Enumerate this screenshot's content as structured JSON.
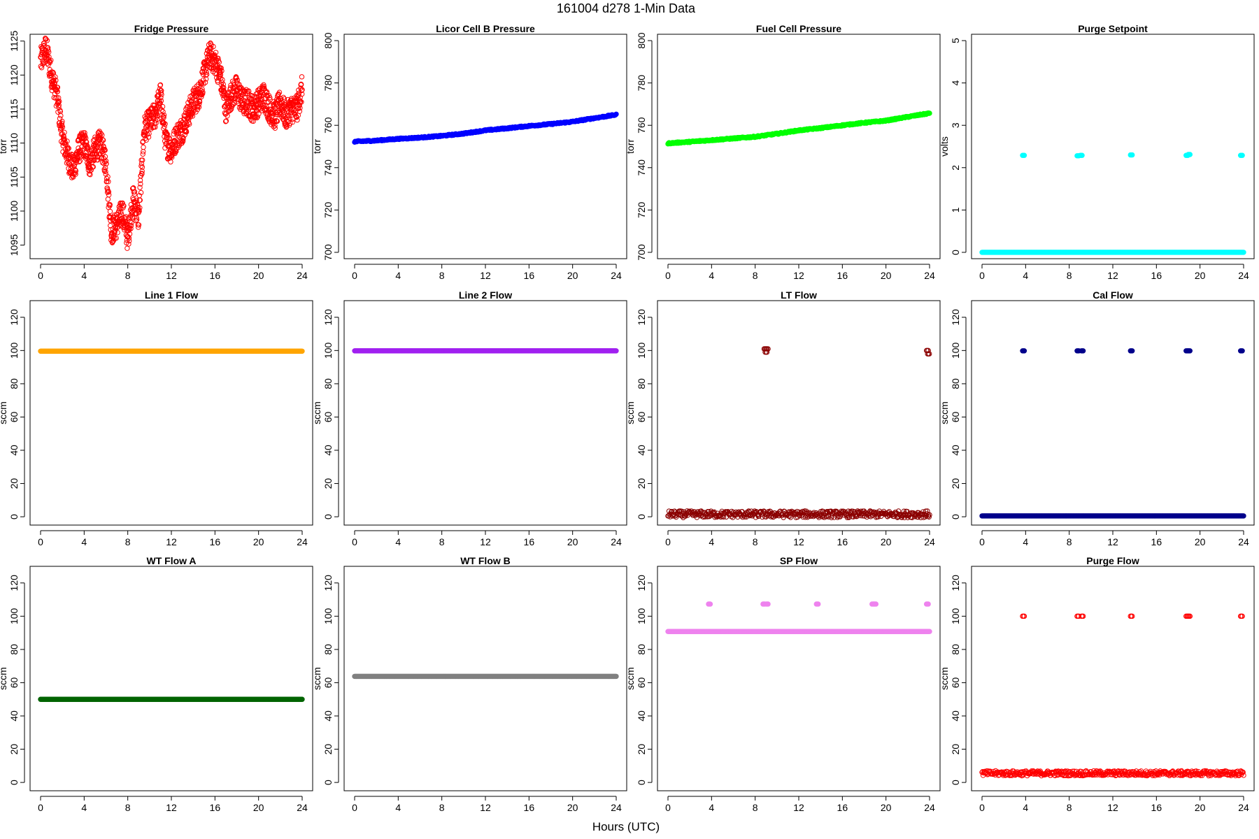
{
  "figure": {
    "title": "161004    d278    1-Min Data",
    "xlabel": "Hours (UTC)"
  },
  "chart_data": [
    {
      "type": "scatter",
      "title": "Fridge Pressure",
      "ylabel": "torr",
      "color": "#ff0000",
      "marker": "open-circle",
      "xlim": [
        0,
        24
      ],
      "xticks": [
        0,
        4,
        8,
        12,
        16,
        20,
        24
      ],
      "ylim": [
        1093,
        1126
      ],
      "yticks": [
        1095,
        1100,
        1105,
        1110,
        1115,
        1120,
        1125
      ],
      "x": [
        0,
        0.5,
        1,
        1.5,
        2,
        2.5,
        3,
        3.5,
        4,
        4.5,
        5,
        5.5,
        6,
        6.5,
        7,
        7.5,
        8,
        8.5,
        9,
        9.5,
        10,
        10.5,
        11,
        11.5,
        12,
        12.5,
        13,
        13.5,
        14,
        14.5,
        15,
        15.5,
        16,
        16.5,
        17,
        17.5,
        18,
        18.5,
        19,
        19.5,
        20,
        20.5,
        21,
        21.5,
        22,
        22.5,
        23,
        23.5,
        24
      ],
      "y": [
        1122,
        1124,
        1120,
        1117,
        1111,
        1108,
        1106,
        1109,
        1110,
        1107,
        1109,
        1110,
        1107,
        1097,
        1098,
        1100,
        1096,
        1102,
        1099,
        1112,
        1113,
        1114,
        1117,
        1110,
        1109,
        1111,
        1112,
        1114,
        1116,
        1117,
        1120,
        1123,
        1122,
        1120,
        1115,
        1117,
        1118,
        1116,
        1116,
        1115,
        1116,
        1117,
        1115,
        1114,
        1116,
        1114,
        1115,
        1115,
        1118
      ]
    },
    {
      "type": "scatter",
      "title": "Licor Cell B Pressure",
      "ylabel": "torr",
      "color": "#0000ff",
      "marker": "filled",
      "xlim": [
        0,
        24
      ],
      "xticks": [
        0,
        4,
        8,
        12,
        16,
        20,
        24
      ],
      "ylim": [
        697,
        803
      ],
      "yticks": [
        700,
        720,
        740,
        760,
        780,
        800
      ],
      "x": [
        0,
        2,
        4,
        6,
        8,
        10,
        12,
        14,
        16,
        18,
        20,
        22,
        24
      ],
      "y": [
        752.3,
        752.8,
        753.6,
        754.2,
        755.0,
        756.1,
        757.6,
        758.6,
        759.7,
        760.6,
        761.7,
        763.4,
        765.0
      ]
    },
    {
      "type": "scatter",
      "title": "Fuel Cell Pressure",
      "ylabel": "torr",
      "color": "#00ff00",
      "marker": "filled",
      "xlim": [
        0,
        24
      ],
      "xticks": [
        0,
        4,
        8,
        12,
        16,
        20,
        24
      ],
      "ylim": [
        697,
        803
      ],
      "yticks": [
        700,
        720,
        740,
        760,
        780,
        800
      ],
      "x": [
        0,
        2,
        4,
        6,
        8,
        10,
        12,
        14,
        16,
        18,
        20,
        22,
        24
      ],
      "y": [
        751.5,
        752.2,
        753.0,
        753.8,
        754.6,
        756.0,
        757.6,
        758.7,
        760.0,
        761.2,
        762.2,
        764.0,
        765.7
      ]
    },
    {
      "type": "scatter",
      "title": "Purge Setpoint",
      "ylabel": "volts",
      "color": "#00ffff",
      "marker": "filled",
      "xlim": [
        0,
        24
      ],
      "xticks": [
        0,
        4,
        8,
        12,
        16,
        20,
        24
      ],
      "ylim": [
        -0.15,
        5.15
      ],
      "yticks": [
        0,
        1,
        2,
        3,
        4,
        5
      ],
      "baseline": 0.0,
      "spikes": {
        "x": [
          3.8,
          8.8,
          9.1,
          13.7,
          18.8,
          19.0,
          23.8
        ],
        "y": [
          2.29,
          2.28,
          2.29,
          2.3,
          2.29,
          2.31,
          2.29
        ]
      }
    },
    {
      "type": "scatter",
      "title": "Line 1 Flow",
      "ylabel": "sccm",
      "color": "#ffa500",
      "marker": "filled",
      "xlim": [
        0,
        24
      ],
      "xticks": [
        0,
        4,
        8,
        12,
        16,
        20,
        24
      ],
      "ylim": [
        -5,
        130
      ],
      "yticks": [
        0,
        20,
        40,
        60,
        80,
        100,
        120
      ],
      "baseline": 99.6
    },
    {
      "type": "scatter",
      "title": "Line 2 Flow",
      "ylabel": "sccm",
      "color": "#a020f0",
      "marker": "filled",
      "xlim": [
        0,
        24
      ],
      "xticks": [
        0,
        4,
        8,
        12,
        16,
        20,
        24
      ],
      "ylim": [
        -5,
        130
      ],
      "yticks": [
        0,
        20,
        40,
        60,
        80,
        100,
        120
      ],
      "baseline": 99.8
    },
    {
      "type": "scatter",
      "title": "LT Flow",
      "ylabel": "sccm",
      "color": "#8b0000",
      "marker": "open-circle",
      "xlim": [
        0,
        24
      ],
      "xticks": [
        0,
        4,
        8,
        12,
        16,
        20,
        24
      ],
      "ylim": [
        -5,
        130
      ],
      "yticks": [
        0,
        20,
        40,
        60,
        80,
        100,
        120
      ],
      "baseline": 1.5,
      "band": 4,
      "spikes": {
        "x": [
          8.9,
          9.0,
          9.1,
          23.8,
          23.9
        ],
        "y": [
          101,
          99,
          101,
          100,
          98
        ]
      }
    },
    {
      "type": "scatter",
      "title": "Cal Flow",
      "ylabel": "sccm",
      "color": "#00008b",
      "marker": "filled",
      "xlim": [
        0,
        24
      ],
      "xticks": [
        0,
        4,
        8,
        12,
        16,
        20,
        24
      ],
      "ylim": [
        -5,
        130
      ],
      "yticks": [
        0,
        20,
        40,
        60,
        80,
        100,
        120
      ],
      "baseline": 0.5,
      "spikes": {
        "x": [
          3.8,
          8.8,
          9.2,
          13.7,
          18.8,
          19.0,
          23.8
        ],
        "y": [
          99.8,
          99.8,
          99.8,
          99.8,
          99.8,
          99.8,
          99.8
        ]
      }
    },
    {
      "type": "scatter",
      "title": "WT Flow A",
      "ylabel": "sccm",
      "color": "#006400",
      "marker": "filled",
      "xlim": [
        0,
        24
      ],
      "xticks": [
        0,
        4,
        8,
        12,
        16,
        20,
        24
      ],
      "ylim": [
        -5,
        130
      ],
      "yticks": [
        0,
        20,
        40,
        60,
        80,
        100,
        120
      ],
      "baseline": 50
    },
    {
      "type": "scatter",
      "title": "WT Flow B",
      "ylabel": "sccm",
      "color": "#808080",
      "marker": "filled",
      "xlim": [
        0,
        24
      ],
      "xticks": [
        0,
        4,
        8,
        12,
        16,
        20,
        24
      ],
      "ylim": [
        -5,
        130
      ],
      "yticks": [
        0,
        20,
        40,
        60,
        80,
        100,
        120
      ],
      "baseline": 63.8
    },
    {
      "type": "scatter",
      "title": "SP Flow",
      "ylabel": "sccm",
      "color": "#ee82ee",
      "marker": "filled",
      "xlim": [
        0,
        24
      ],
      "xticks": [
        0,
        4,
        8,
        12,
        16,
        20,
        24
      ],
      "ylim": [
        -5,
        130
      ],
      "yticks": [
        0,
        20,
        40,
        60,
        80,
        100,
        120
      ],
      "baseline": 90.8,
      "spikes": {
        "x": [
          3.8,
          8.8,
          9.1,
          13.7,
          18.8,
          19.0,
          23.8
        ],
        "y": [
          107.3,
          107.3,
          107.3,
          107.3,
          107.3,
          107.3,
          107.3
        ]
      }
    },
    {
      "type": "scatter",
      "title": "Purge Flow",
      "ylabel": "sccm",
      "color": "#ff0000",
      "marker": "open-circle",
      "xlim": [
        0,
        24
      ],
      "xticks": [
        0,
        4,
        8,
        12,
        16,
        20,
        24
      ],
      "ylim": [
        -5,
        130
      ],
      "yticks": [
        0,
        20,
        40,
        60,
        80,
        100,
        120
      ],
      "baseline": 5.5,
      "band": 3,
      "spikes": {
        "x": [
          3.8,
          8.8,
          9.2,
          13.7,
          18.8,
          19.0,
          23.8
        ],
        "y": [
          100,
          100,
          100,
          100,
          100,
          100,
          100
        ]
      }
    }
  ]
}
